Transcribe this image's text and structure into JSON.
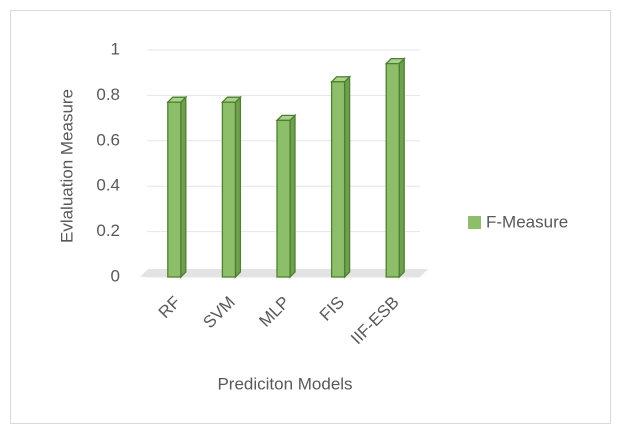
{
  "chart_data": {
    "type": "bar",
    "x_label": "Prediciton Models",
    "y_label": "Evlaluation Measure",
    "categories": [
      "RF",
      "SVM",
      "MLP",
      "FIS",
      "IIF-ESB"
    ],
    "series": [
      {
        "name": "F-Measure",
        "color": "#8dbf6b",
        "values": [
          0.77,
          0.77,
          0.69,
          0.86,
          0.94
        ]
      }
    ],
    "ylim": [
      0,
      1
    ],
    "yticks": [
      0,
      0.2,
      0.4,
      0.6,
      0.8,
      1
    ],
    "grid": true,
    "legend": "right"
  }
}
